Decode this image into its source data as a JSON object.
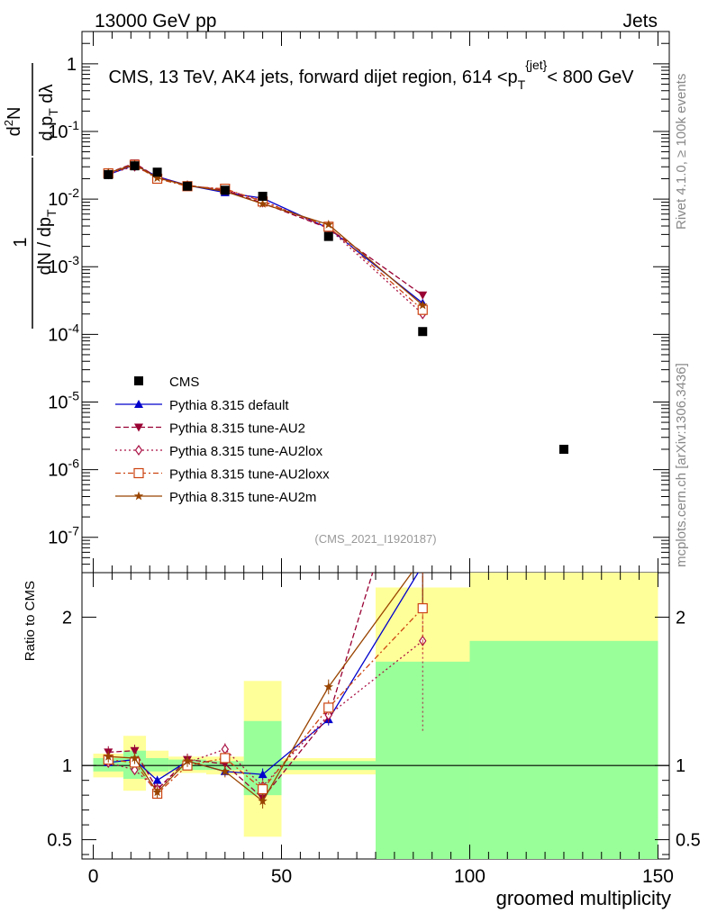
{
  "header": {
    "left": "13000 GeV pp",
    "right": "Jets"
  },
  "side": {
    "rivet": "Rivet 4.1.0, ≥ 100k events",
    "mcplots": "mcplots.cern.ch [arXiv:1306.3436]"
  },
  "chart_data": [
    {
      "type": "line",
      "panel": "main",
      "title": "CMS, 13 TeV, AK4 jets, forward dijet region, 614 <p_T^{jet}< 800 GeV",
      "analysis_id": "(CMS_2021_I1920187)",
      "ylabel": "1/dN/dp_T · d²N/dp_T dλ",
      "yscale": "log",
      "ylim": [
        3e-08,
        3
      ],
      "xlim": [
        -3,
        153
      ],
      "yticks": [
        {
          "v": 1,
          "label": "1"
        },
        {
          "v": 0.1,
          "label": "10",
          "sup": "-1"
        },
        {
          "v": 0.01,
          "label": "10",
          "sup": "-2"
        },
        {
          "v": 0.001,
          "label": "10",
          "sup": "-3"
        },
        {
          "v": 0.0001,
          "label": "10",
          "sup": "-4"
        },
        {
          "v": 1e-05,
          "label": "10",
          "sup": "-5"
        },
        {
          "v": 1e-06,
          "label": "10",
          "sup": "-6"
        },
        {
          "v": 1e-07,
          "label": "10",
          "sup": "-7"
        }
      ],
      "data": {
        "name": "CMS",
        "x": [
          4,
          11,
          17,
          25,
          35,
          45,
          62.5,
          87.5,
          125
        ],
        "y": [
          0.023,
          0.031,
          0.025,
          0.0155,
          0.0135,
          0.011,
          0.0028,
          0.00011,
          2e-06
        ]
      },
      "series": [
        {
          "name": "Pythia 8.315 default",
          "color": "#0000cc",
          "dash": "",
          "marker": "triangle-up",
          "x": [
            4,
            11,
            17,
            25,
            35,
            45,
            62.5,
            87.5
          ],
          "y": [
            0.023,
            0.032,
            0.0215,
            0.016,
            0.0125,
            0.0103,
            0.0037,
            0.00029
          ]
        },
        {
          "name": "Pythia 8.315 tune-AU2",
          "color": "#990033",
          "dash": "6,3",
          "marker": "triangle-down",
          "x": [
            4,
            11,
            17,
            25,
            35,
            45,
            62.5,
            87.5
          ],
          "y": [
            0.0245,
            0.034,
            0.021,
            0.016,
            0.0135,
            0.0087,
            0.0037,
            0.00038
          ]
        },
        {
          "name": "Pythia 8.315 tune-AU2lox",
          "color": "#aa1144",
          "dash": "2,3",
          "marker": "diamond",
          "x": [
            4,
            11,
            17,
            25,
            35,
            45,
            62.5,
            87.5
          ],
          "y": [
            0.0235,
            0.0305,
            0.021,
            0.0158,
            0.0138,
            0.0095,
            0.0037,
            0.0002
          ]
        },
        {
          "name": "Pythia 8.315 tune-AU2loxx",
          "color": "#cc4411",
          "dash": "6,3,2,3",
          "marker": "square-open",
          "x": [
            4,
            11,
            17,
            25,
            35,
            45,
            62.5,
            87.5
          ],
          "y": [
            0.024,
            0.032,
            0.02,
            0.0155,
            0.0142,
            0.0092,
            0.0039,
            0.00023
          ]
        },
        {
          "name": "Pythia 8.315 tune-AU2m",
          "color": "#994400",
          "dash": "",
          "marker": "star",
          "x": [
            4,
            11,
            17,
            25,
            35,
            45,
            62.5,
            87.5
          ],
          "y": [
            0.0245,
            0.0325,
            0.0205,
            0.016,
            0.013,
            0.0085,
            0.0042,
            0.00027
          ]
        }
      ]
    },
    {
      "type": "line",
      "panel": "ratio",
      "xlabel": "groomed multiplicity",
      "ylabel": "Ratio to CMS",
      "ylim": [
        0.37,
        2.3
      ],
      "xlim": [
        -3,
        153
      ],
      "xticks": [
        0,
        50,
        100,
        150
      ],
      "yticks": [
        0.5,
        1,
        2
      ],
      "bands": [
        {
          "x0": 0,
          "x1": 8,
          "stat": [
            0.96,
            1.05
          ],
          "tot": [
            0.92,
            1.08
          ]
        },
        {
          "x0": 8,
          "x1": 14,
          "stat": [
            0.91,
            1.1
          ],
          "tot": [
            0.83,
            1.2
          ]
        },
        {
          "x0": 14,
          "x1": 20,
          "stat": [
            0.96,
            1.05
          ],
          "tot": [
            0.93,
            1.1
          ]
        },
        {
          "x0": 20,
          "x1": 30,
          "stat": [
            0.97,
            1.04
          ],
          "tot": [
            0.95,
            1.06
          ]
        },
        {
          "x0": 30,
          "x1": 40,
          "stat": [
            0.97,
            1.03
          ],
          "tot": [
            0.94,
            1.06
          ]
        },
        {
          "x0": 40,
          "x1": 50,
          "stat": [
            0.8,
            1.3
          ],
          "tot": [
            0.52,
            1.57
          ]
        },
        {
          "x0": 50,
          "x1": 75,
          "stat": [
            0.97,
            1.03
          ],
          "tot": [
            0.94,
            1.05
          ]
        },
        {
          "x0": 75,
          "x1": 100,
          "stat": [
            0.3,
            1.7
          ],
          "tot": [
            0.3,
            2.2
          ]
        },
        {
          "x0": 100,
          "x1": 150,
          "stat": [
            0.3,
            1.84
          ],
          "tot": [
            0.3,
            2.4
          ]
        }
      ],
      "series": [
        {
          "name": "Pythia 8.315 default",
          "color": "#0000cc",
          "dash": "",
          "marker": "triangle-up",
          "x": [
            4,
            11,
            17,
            25,
            35,
            45,
            62.5,
            87.5
          ],
          "y": [
            1.02,
            1.04,
            0.9,
            1.03,
            0.96,
            0.94,
            1.31,
            2.35
          ],
          "err": [
            0.03,
            0.03,
            0.03,
            0.03,
            0.03,
            0.04,
            0.04,
            0.3
          ]
        },
        {
          "name": "Pythia 8.315 tune-AU2",
          "color": "#990033",
          "dash": "6,3",
          "marker": "triangle-down",
          "x": [
            4,
            11,
            17,
            25,
            35,
            45,
            62.5,
            87.5
          ],
          "y": [
            1.09,
            1.1,
            0.84,
            1.04,
            1.01,
            0.78,
            1.33,
            3.4
          ],
          "err": [
            0.04,
            0.04,
            0.04,
            0.04,
            0.04,
            0.05,
            0.05,
            0.4
          ]
        },
        {
          "name": "Pythia 8.315 tune-AU2lox",
          "color": "#aa1144",
          "dash": "2,3",
          "marker": "diamond",
          "x": [
            4,
            11,
            17,
            25,
            35,
            45,
            62.5,
            87.5
          ],
          "y": [
            1.02,
            0.97,
            0.84,
            1.02,
            1.11,
            0.86,
            1.34,
            1.84
          ],
          "err": [
            0.04,
            0.04,
            0.04,
            0.04,
            0.04,
            0.05,
            0.05,
            0.62
          ]
        },
        {
          "name": "Pythia 8.315 tune-AU2loxx",
          "color": "#cc4411",
          "dash": "6,3,2,3",
          "marker": "square-open",
          "x": [
            4,
            11,
            17,
            25,
            35,
            45,
            62.5,
            87.5
          ],
          "y": [
            1.04,
            1.02,
            0.81,
            1.0,
            1.05,
            0.84,
            1.39,
            2.06
          ],
          "err": [
            0.03,
            0.03,
            0.04,
            0.03,
            0.04,
            0.05,
            0.05,
            0.3
          ]
        },
        {
          "name": "Pythia 8.315 tune-AU2m",
          "color": "#994400",
          "dash": "",
          "marker": "star",
          "x": [
            4,
            11,
            17,
            25,
            35,
            45,
            62.5,
            87.5
          ],
          "y": [
            1.06,
            1.05,
            0.82,
            1.03,
            0.96,
            0.76,
            1.53,
            2.4
          ],
          "err": [
            0.04,
            0.04,
            0.04,
            0.04,
            0.04,
            0.05,
            0.05,
            0.3
          ]
        }
      ]
    }
  ]
}
